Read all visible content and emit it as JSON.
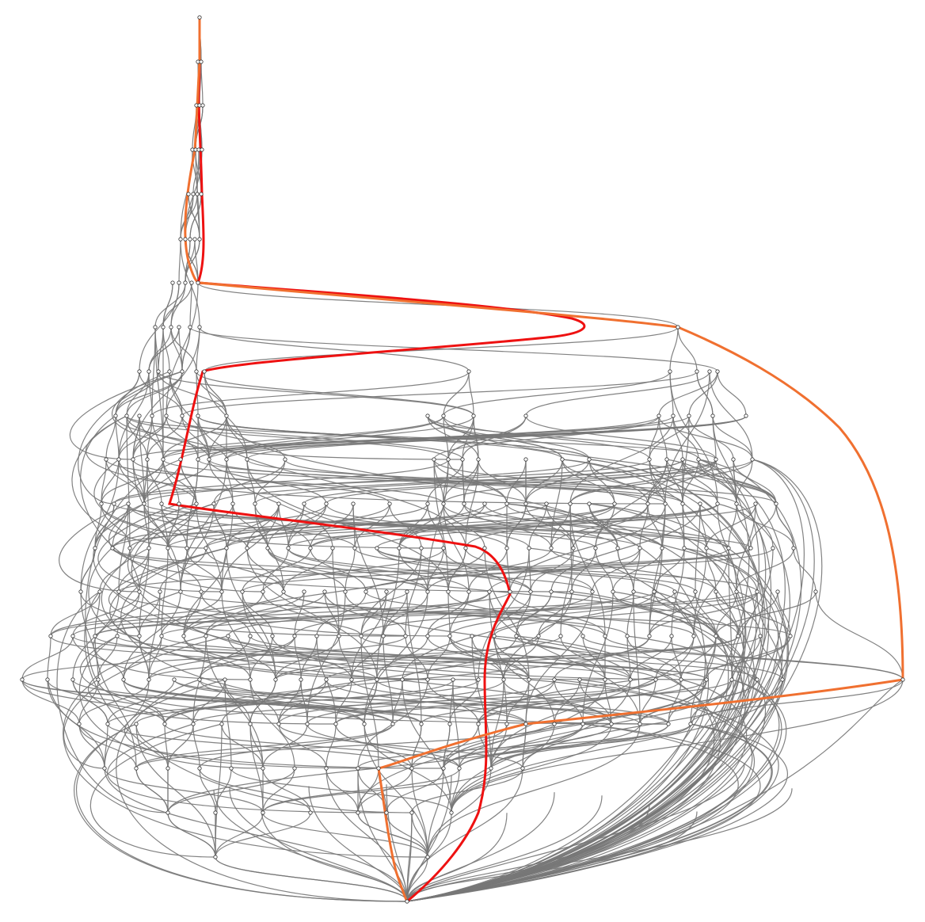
{
  "colors": {
    "background": "#ffffff",
    "edge": "#777777",
    "node_fill": "#ffffff",
    "node_stroke": "#333333",
    "highlight_path_1": "#ee1111",
    "highlight_path_2": "#f07030"
  }
}
